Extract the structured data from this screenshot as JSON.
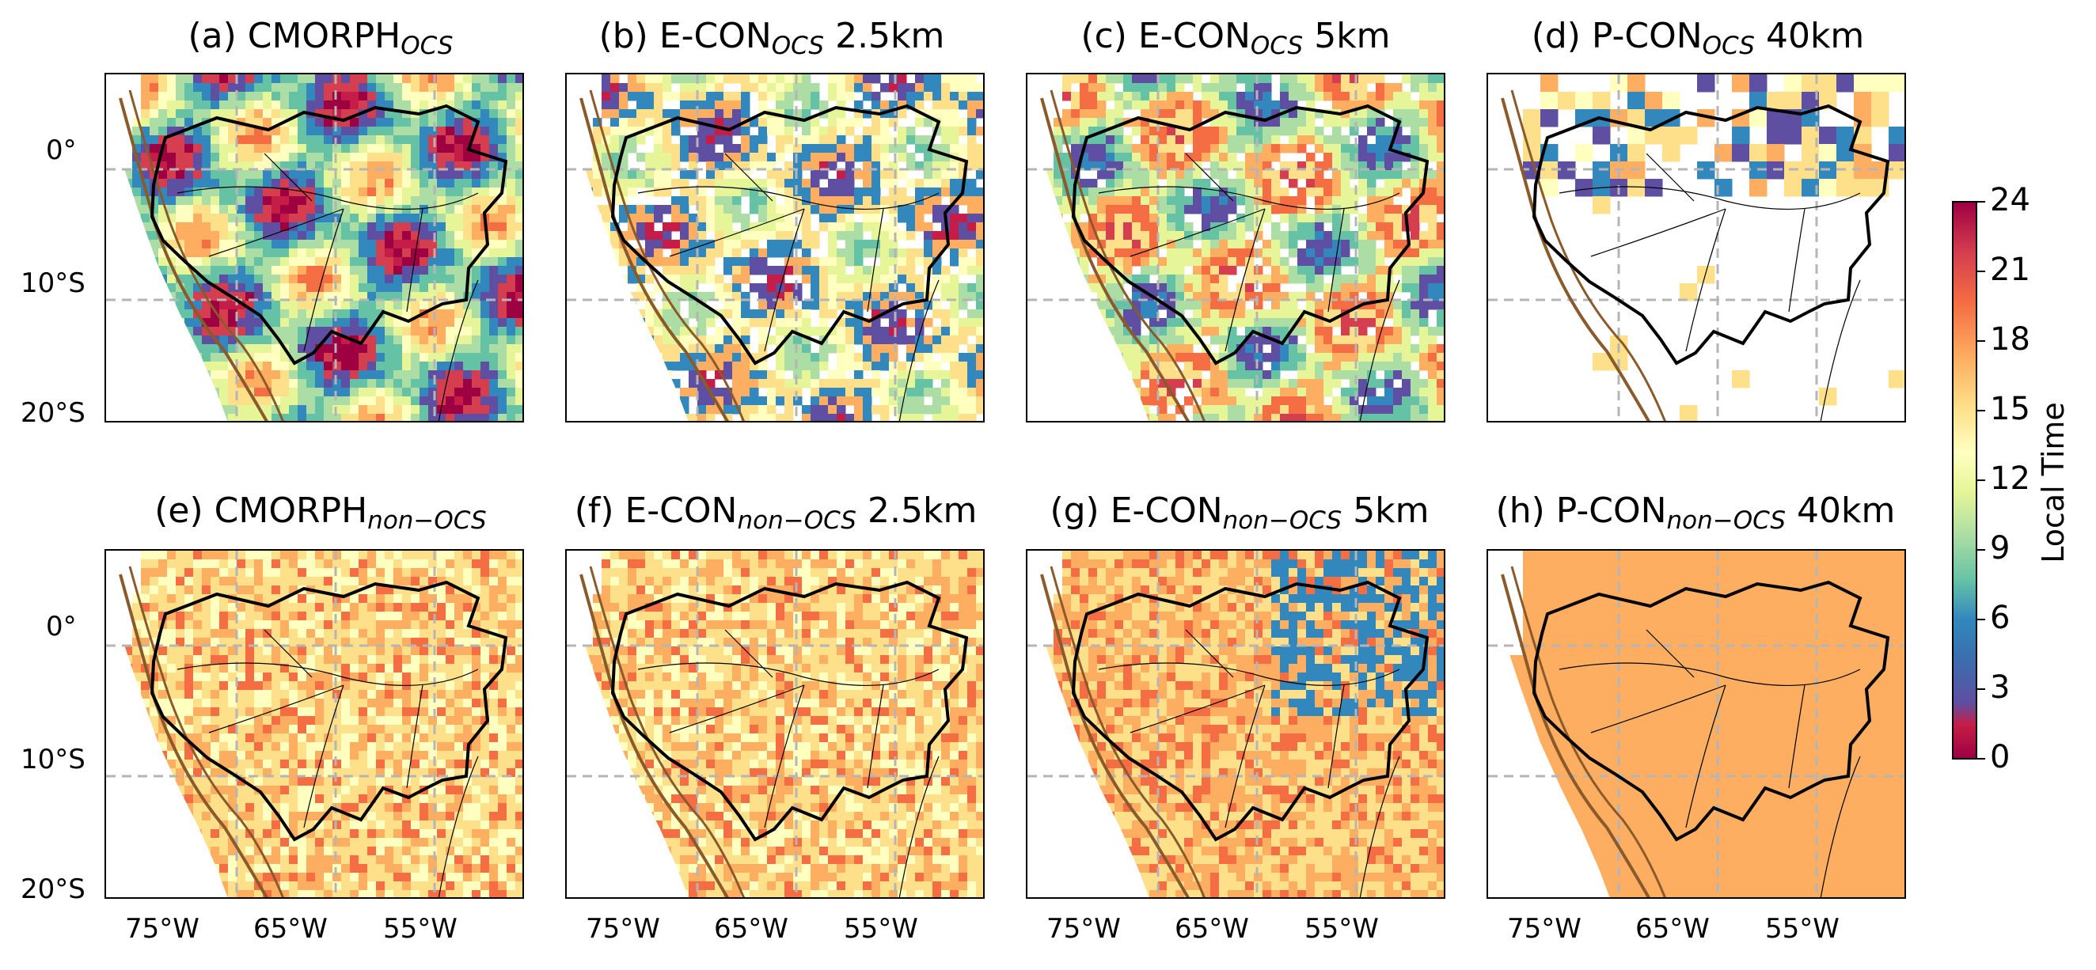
{
  "panels": [
    {
      "id": "a",
      "title_prefix": "(a) CMORPH",
      "title_sub": "OCS",
      "title_suffix": "",
      "scheme": "ocs_mixed"
    },
    {
      "id": "b",
      "title_prefix": "(b) E-CON",
      "title_sub": "OCS",
      "title_suffix": " 2.5km",
      "scheme": "ocs_green"
    },
    {
      "id": "c",
      "title_prefix": "(c) E-CON",
      "title_sub": "OCS",
      "title_suffix": " 5km",
      "scheme": "ocs_blue"
    },
    {
      "id": "d",
      "title_prefix": "(d) P-CON",
      "title_sub": "OCS",
      "title_suffix": " 40km",
      "scheme": "ocs_sparse"
    },
    {
      "id": "e",
      "title_prefix": "(e) CMORPH",
      "title_sub": "non−OCS",
      "title_suffix": "",
      "scheme": "non_ocs"
    },
    {
      "id": "f",
      "title_prefix": "(f) E-CON",
      "title_sub": "non−OCS",
      "title_suffix": " 2.5km",
      "scheme": "non_ocs"
    },
    {
      "id": "g",
      "title_prefix": "(g) E-CON",
      "title_sub": "non−OCS",
      "title_suffix": " 5km",
      "scheme": "non_ocs_blue"
    },
    {
      "id": "h",
      "title_prefix": "(h) P-CON",
      "title_sub": "non−OCS",
      "title_suffix": " 40km",
      "scheme": "non_ocs_coarse"
    }
  ],
  "lat_ticks": [
    "0°",
    "10°S",
    "20°S"
  ],
  "lon_ticks": [
    "75°W",
    "65°W",
    "55°W"
  ],
  "colorbar": {
    "label": "Local Time",
    "ticks": [
      "0",
      "3",
      "6",
      "9",
      "12",
      "15",
      "18",
      "21",
      "24"
    ],
    "range": [
      0,
      24
    ],
    "colormap": "Spectral (reversed)"
  }
}
